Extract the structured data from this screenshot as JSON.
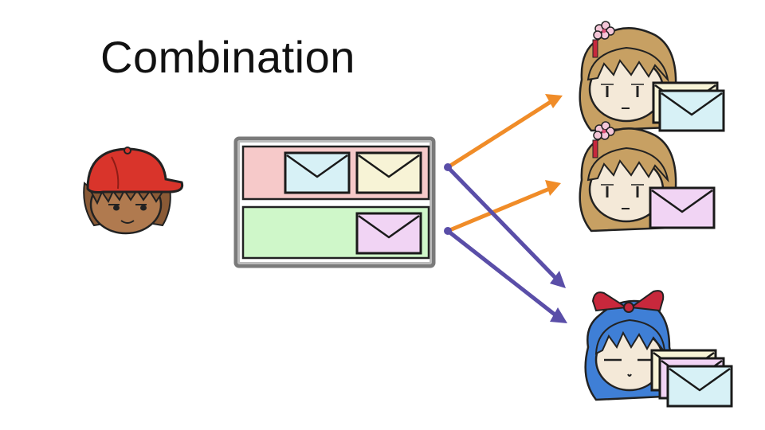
{
  "slide": {
    "title": "Combination"
  },
  "actors": {
    "sender": {
      "icon": "sender-red-cap-icon",
      "cap_color": "#d9342b",
      "hair_color": "#8a5a36"
    },
    "receiver_blonde": {
      "icon": "receiver-blonde-icon",
      "hair_color": "#c7a063",
      "accessory": "pink-flower-hairpin"
    },
    "receiver_blue": {
      "icon": "receiver-blue-hair-icon",
      "hair_color": "#3f7fd6",
      "accessory": "red-bow"
    }
  },
  "batch": {
    "rows": [
      {
        "color": "#f6c9c9",
        "envelopes": [
          "#d7f1f6",
          "#f7f3d6"
        ]
      },
      {
        "color": "#cff7c9",
        "envelopes": [
          "#f1d4f4"
        ]
      }
    ]
  },
  "arrow_colors": {
    "orange": "#f08c28",
    "purple": "#5a4ea8"
  },
  "colors": {
    "frame": "#7a7a7a",
    "envelope_cyan": "#d7f1f6",
    "envelope_yellow": "#f7f3d6",
    "envelope_pink": "#f1d4f4"
  }
}
